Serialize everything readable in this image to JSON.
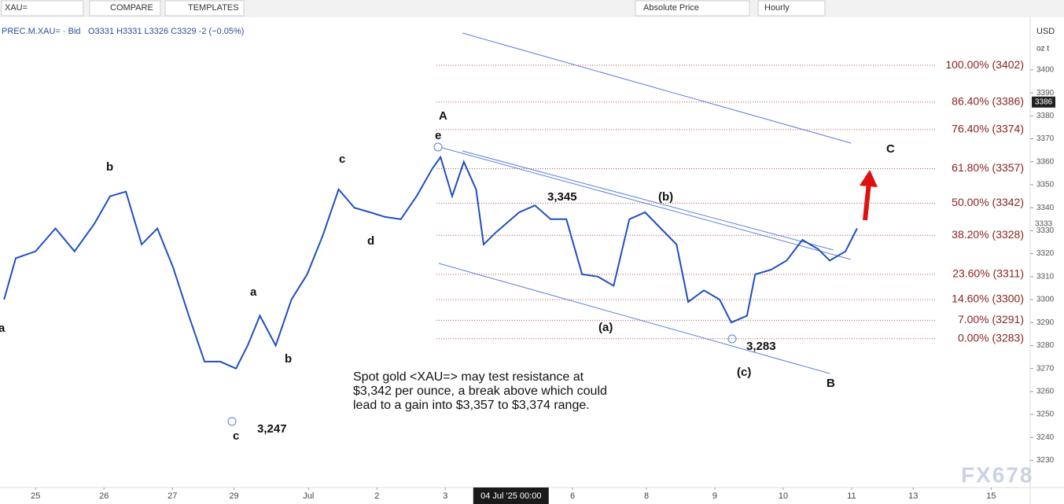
{
  "toolbar": {
    "symbol": "XAU=",
    "compare": "COMPARE",
    "templates": "TEMPLATES",
    "price_mode": "Absolute Price",
    "interval": "Hourly"
  },
  "chart_data": {
    "type": "line",
    "header": {
      "instrument": "PREC.M.XAU= · Bid",
      "ohlc": "O3331 H3331 L3326 C3329 -2 (−0.05%)"
    },
    "currency": "USD",
    "unit": "oz t",
    "x": [
      -0.46,
      -0.29,
      0,
      0.29,
      0.57,
      0.86,
      1.09,
      1.32,
      1.55,
      1.78,
      2.01,
      2.24,
      2.47,
      2.7,
      2.93,
      3.1,
      3.28,
      3.51,
      3.74,
      3.97,
      4.2,
      4.43,
      4.66,
      4.89,
      5.11,
      5.34,
      5.57,
      5.8,
      5.92,
      6.09,
      6.26,
      6.44,
      6.55,
      6.72,
      7.07,
      7.3,
      7.53,
      7.76,
      7.99,
      8.22,
      8.45,
      8.68,
      8.91,
      9.14,
      9.37,
      9.54,
      9.77,
      10.0,
      10.17,
      10.4,
      10.52,
      10.75,
      10.98,
      11.21,
      11.44,
      11.61,
      11.84,
      12.01
    ],
    "series": [
      {
        "color": "#1f4fc4",
        "values": [
          3300,
          3318,
          3321,
          3331,
          3321,
          3333,
          3345,
          3347,
          3324,
          3331,
          3314,
          3293,
          3273,
          3273,
          3270,
          3280,
          3293,
          3280,
          3300,
          3311,
          3328,
          3348,
          3340,
          3338,
          3336,
          3335,
          3345,
          3357,
          3362,
          3345,
          3360,
          3348,
          3324,
          3329,
          3338,
          3341,
          3335,
          3335,
          3311,
          3310,
          3306,
          3335,
          3338,
          3331,
          3324,
          3299,
          3304,
          3300,
          3290,
          3293,
          3311,
          3313,
          3317,
          3326,
          3322,
          3317,
          3321,
          3331
        ]
      }
    ],
    "ylim": [
      3218.2,
      3422.9
    ],
    "yticks": [
      3230,
      3240,
      3250,
      3260,
      3270,
      3280,
      3290,
      3300,
      3310,
      3320,
      3330,
      3340,
      3350,
      3360,
      3370,
      3380,
      3390,
      3400
    ],
    "xlim": [
      -0.52,
      14.54
    ],
    "xticks": [
      {
        "value": 0,
        "label": "25"
      },
      {
        "value": 1,
        "label": "26"
      },
      {
        "value": 2,
        "label": "27"
      },
      {
        "value": 2.9,
        "label": "29"
      },
      {
        "value": 3.99,
        "label": "Jul"
      },
      {
        "value": 4.99,
        "label": "2"
      },
      {
        "value": 5.99,
        "label": "3"
      },
      {
        "value": 7.85,
        "label": "6"
      },
      {
        "value": 8.93,
        "label": "8"
      },
      {
        "value": 9.93,
        "label": "9"
      },
      {
        "value": 10.93,
        "label": "10"
      },
      {
        "value": 11.93,
        "label": "11"
      },
      {
        "value": 12.83,
        "label": "13"
      },
      {
        "value": 13.97,
        "label": "15"
      }
    ],
    "x_cursor": {
      "value": 6.95,
      "label": "04 Jul '25  00:00"
    },
    "price_markers": [
      {
        "value": 3386,
        "label": "3386"
      },
      {
        "value": 3333,
        "label": "3333"
      }
    ],
    "fib_levels": [
      {
        "value": 3402,
        "label": "100.00% (3402)"
      },
      {
        "value": 3386,
        "label": "86.40% (3386)"
      },
      {
        "value": 3374,
        "label": "76.40% (3374)"
      },
      {
        "value": 3357,
        "label": "61.80% (3357)"
      },
      {
        "value": 3342,
        "label": "50.00% (3342)"
      },
      {
        "value": 3328,
        "label": "38.20% (3328)"
      },
      {
        "value": 3311,
        "label": "23.60% (3311)"
      },
      {
        "value": 3300,
        "label": "14.60% (3300)"
      },
      {
        "value": 3291,
        "label": "7.00% (3291)"
      },
      {
        "value": 3283,
        "label": "0.00% (3283)"
      }
    ],
    "wave_labels": [
      "a",
      "b",
      "c",
      "d",
      "e",
      "A",
      "a",
      "b",
      "c",
      "3,247",
      "3,345",
      "(b)",
      "(a)",
      "3,283",
      "(c)",
      "B",
      "C"
    ],
    "note": [
      "Spot gold <XAU=> may test resistance at",
      "$3,342 per ounce, a break above which could",
      "lead to a gain into $3,357 to $3,374 range."
    ],
    "watermark": "FX678"
  }
}
